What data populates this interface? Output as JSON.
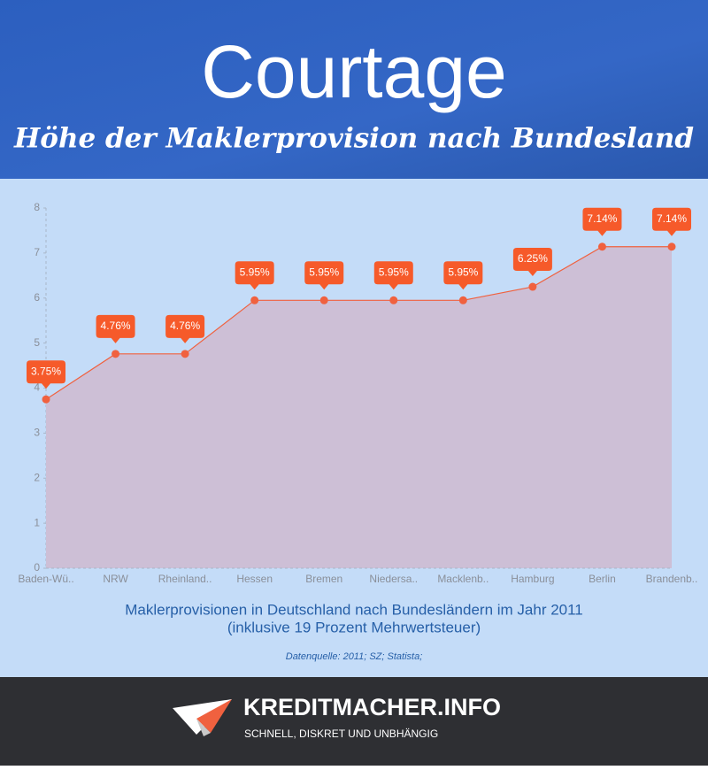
{
  "header": {
    "title": "Courtage",
    "subtitle": "Höhe der Maklerprovision nach Bundesland"
  },
  "chart_data": {
    "type": "line",
    "categories": [
      "Baden-Wü..",
      "NRW",
      "Rheinland..",
      "Hessen",
      "Bremen",
      "Niedersa..",
      "Macklenb..",
      "Hamburg",
      "Berlin",
      "Brandenb.."
    ],
    "values": [
      3.75,
      4.76,
      4.76,
      5.95,
      5.95,
      5.95,
      5.95,
      6.25,
      7.14,
      7.14
    ],
    "value_labels": [
      "3.75%",
      "4.76%",
      "4.76%",
      "5.95%",
      "5.95%",
      "5.95%",
      "5.95%",
      "6.25%",
      "7.14%",
      "7.14%"
    ],
    "color": "#f0613f",
    "area_color": "#cdbfd6",
    "ylim": [
      0,
      8
    ],
    "yticks": [
      0,
      1,
      2,
      3,
      4,
      5,
      6,
      7,
      8
    ]
  },
  "caption": [
    "Maklerprovisionen in Deutschland nach Bundesländern im Jahr 2011",
    "(inklusive 19 Prozent Mehrwertsteuer)"
  ],
  "source": "Datenquelle: 2011; SZ; Statista;",
  "footer": {
    "brand": "KREDITMACHER.INFO",
    "tagline": "SCHNELL, DISKRET UND UNBHÄNGIG"
  }
}
